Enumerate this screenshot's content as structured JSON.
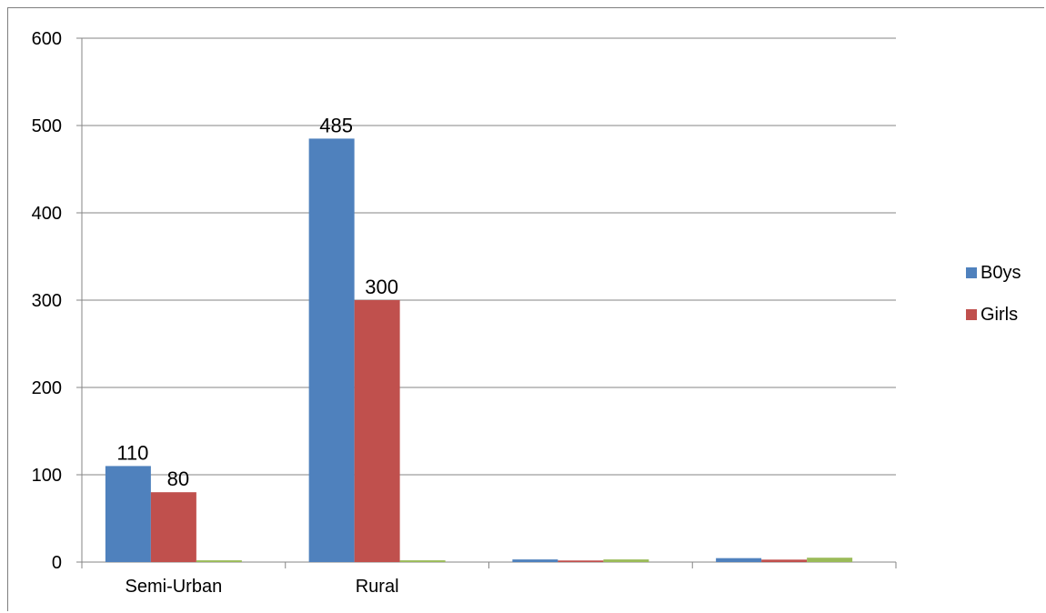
{
  "chart_data": {
    "type": "bar",
    "categories": [
      "Semi-Urban",
      "Rural",
      "",
      ""
    ],
    "series": [
      {
        "name": "B0ys",
        "color": "#4f81bd",
        "values": [
          110,
          485,
          3,
          4.5
        ],
        "labels": [
          "110",
          "485",
          "",
          ""
        ]
      },
      {
        "name": "Girls",
        "color": "#c0504d",
        "values": [
          80,
          300,
          1.8,
          2.8
        ],
        "labels": [
          "80",
          "300",
          "",
          ""
        ]
      },
      {
        "name": "",
        "color": "#9bbb59",
        "values": [
          2,
          2,
          3,
          5
        ],
        "labels": [
          "",
          "",
          "",
          ""
        ]
      }
    ],
    "ylim": [
      0,
      600
    ],
    "yticks": [
      "0",
      "100",
      "200",
      "300",
      "400",
      "500",
      "600"
    ],
    "grid": true,
    "legend_position": "right",
    "title": "",
    "xlabel": "",
    "ylabel": ""
  }
}
